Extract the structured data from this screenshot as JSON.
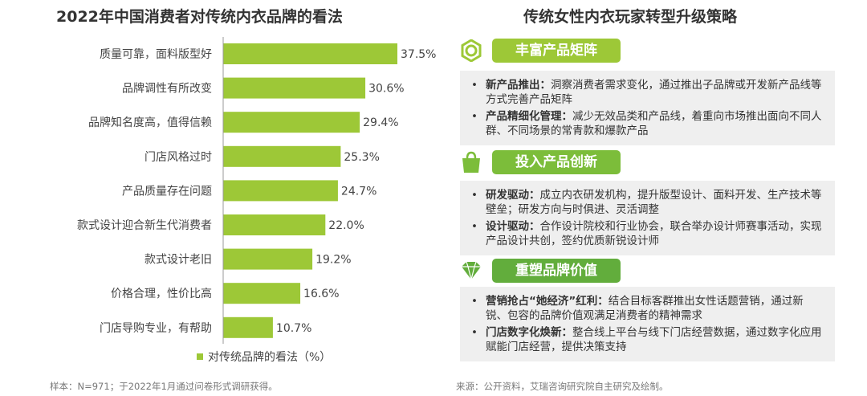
{
  "left_title": "2022年中国消费者对传统内衣品牌的看法",
  "right_title": "传统女性内衣玩家转型升级策略",
  "chart_data": {
    "type": "bar",
    "orientation": "horizontal",
    "title": "2022年中国消费者对传统内衣品牌的看法",
    "categories": [
      "质量可靠，面料版型好",
      "品牌调性有所改变",
      "品牌知名度高，值得信赖",
      "门店风格过时",
      "产品质量存在问题",
      "款式设计迎合新生代消费者",
      "款式设计老旧",
      "价格合理，性价比高",
      "门店导购专业，有帮助"
    ],
    "values": [
      37.5,
      30.6,
      29.4,
      25.3,
      24.7,
      22.0,
      19.2,
      16.6,
      10.7
    ],
    "value_labels": [
      "37.5%",
      "30.6%",
      "29.4%",
      "25.3%",
      "24.7%",
      "22.0%",
      "19.2%",
      "16.6%",
      "10.7%"
    ],
    "legend": "对传统品牌的看法（%）",
    "legend_position": "bottom",
    "xlim": [
      0,
      40
    ],
    "color": "#9dc837"
  },
  "sections": [
    {
      "title": "丰富产品矩阵",
      "icon": "hexagon-ring-icon",
      "items": [
        {
          "bold": "新产品推出：",
          "text": "洞察消费者需求变化，通过推出子品牌或开发新产品线等方式完善产品矩阵"
        },
        {
          "bold": "产品精细化管理：",
          "text": "减少无效品类和产品线，着重向市场推出面向不同人群、不同场景的常青款和爆款产品"
        }
      ]
    },
    {
      "title": "投入产品创新",
      "icon": "shopping-bag-icon",
      "items": [
        {
          "bold": "研发驱动：",
          "text": "成立内衣研发机构，提升版型设计、面料开发、生产技术等壁垒；研发方向与时俱进、灵活调整"
        },
        {
          "bold": "设计驱动：",
          "text": "合作设计院校和行业协会，联合举办设计师赛事活动，实现产品设计共创，签约优质新锐设计师"
        }
      ]
    },
    {
      "title": "重塑品牌价值",
      "icon": "diamond-icon",
      "items": [
        {
          "bold": "营销抢占“她经济”红利：",
          "text": "结合目标客群推出女性话题营销，通过新锐、包容的品牌价值观满足消费者的精神需求"
        },
        {
          "bold": "门店数字化焕新：",
          "text": "整合线上平台与线下门店经营数据，通过数字化应用赋能门店经营，提供决策支持"
        }
      ]
    }
  ],
  "footer_left": "样本：N=971；于2022年1月通过问卷形式调研获得。",
  "footer_right": "来源：公开资料，艾瑞咨询研究院自主研究及绘制。",
  "colors": {
    "bar": "#9dc837",
    "pill1": "#9dc837",
    "pill2": "#7cbd3a",
    "pill3": "#62ad3c"
  }
}
